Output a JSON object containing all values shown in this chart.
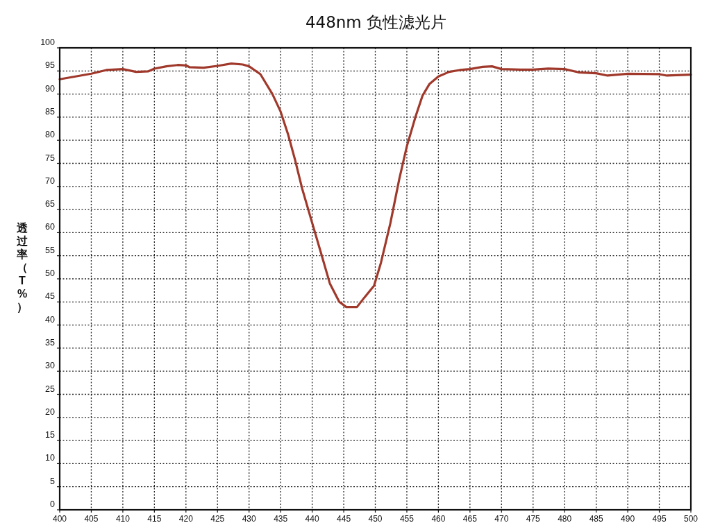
{
  "chart_data": {
    "type": "line",
    "title": "448nm 负性滤光片",
    "ylabel": "透过率（T%）",
    "xlim": [
      400,
      500
    ],
    "ylim": [
      0,
      100
    ],
    "xticks": [
      400,
      405,
      410,
      415,
      420,
      425,
      430,
      435,
      440,
      445,
      450,
      455,
      460,
      465,
      470,
      475,
      480,
      485,
      490,
      495,
      500
    ],
    "yticks": [
      0,
      5,
      10,
      15,
      20,
      25,
      30,
      35,
      40,
      45,
      50,
      55,
      60,
      65,
      70,
      75,
      80,
      85,
      90,
      95,
      100
    ],
    "grid": true,
    "marker": "none",
    "line_style": "solid",
    "series": [
      {
        "color": "#a0392b",
        "x": [
          400,
          405,
          407.4,
          410,
          412.1,
          414,
          415,
          416.9,
          418.8,
          420,
          420.6,
          422.8,
          425,
          427.2,
          429,
          430,
          431.8,
          433.7,
          435,
          436.2,
          437.3,
          438.4,
          440,
          441.4,
          442.8,
          444.3,
          445.4,
          447.1,
          448.3,
          449.8,
          450.9,
          452.4,
          453.8,
          455,
          456.4,
          457.5,
          458.6,
          460,
          461.7,
          463.4,
          465,
          467,
          468.5,
          470,
          473,
          475,
          477.4,
          480,
          482.2,
          485,
          486.8,
          490,
          495,
          496.2,
          500
        ],
        "values": [
          93.2,
          94.4,
          95.2,
          95.4,
          94.8,
          94.9,
          95.5,
          96,
          96.3,
          96.2,
          95.8,
          95.7,
          96.1,
          96.6,
          96.4,
          96,
          94.3,
          90,
          86.2,
          81.2,
          75.7,
          69.6,
          62.1,
          55.6,
          49,
          45,
          43.9,
          43.9,
          46,
          48.5,
          53.5,
          62.1,
          71.6,
          78.7,
          85.2,
          89.7,
          92.2,
          93.8,
          94.8,
          95.2,
          95.4,
          95.9,
          96,
          95.4,
          95.3,
          95.3,
          95.5,
          95.4,
          94.7,
          94.5,
          94,
          94.4,
          94.3,
          94,
          94.2
        ]
      }
    ]
  }
}
